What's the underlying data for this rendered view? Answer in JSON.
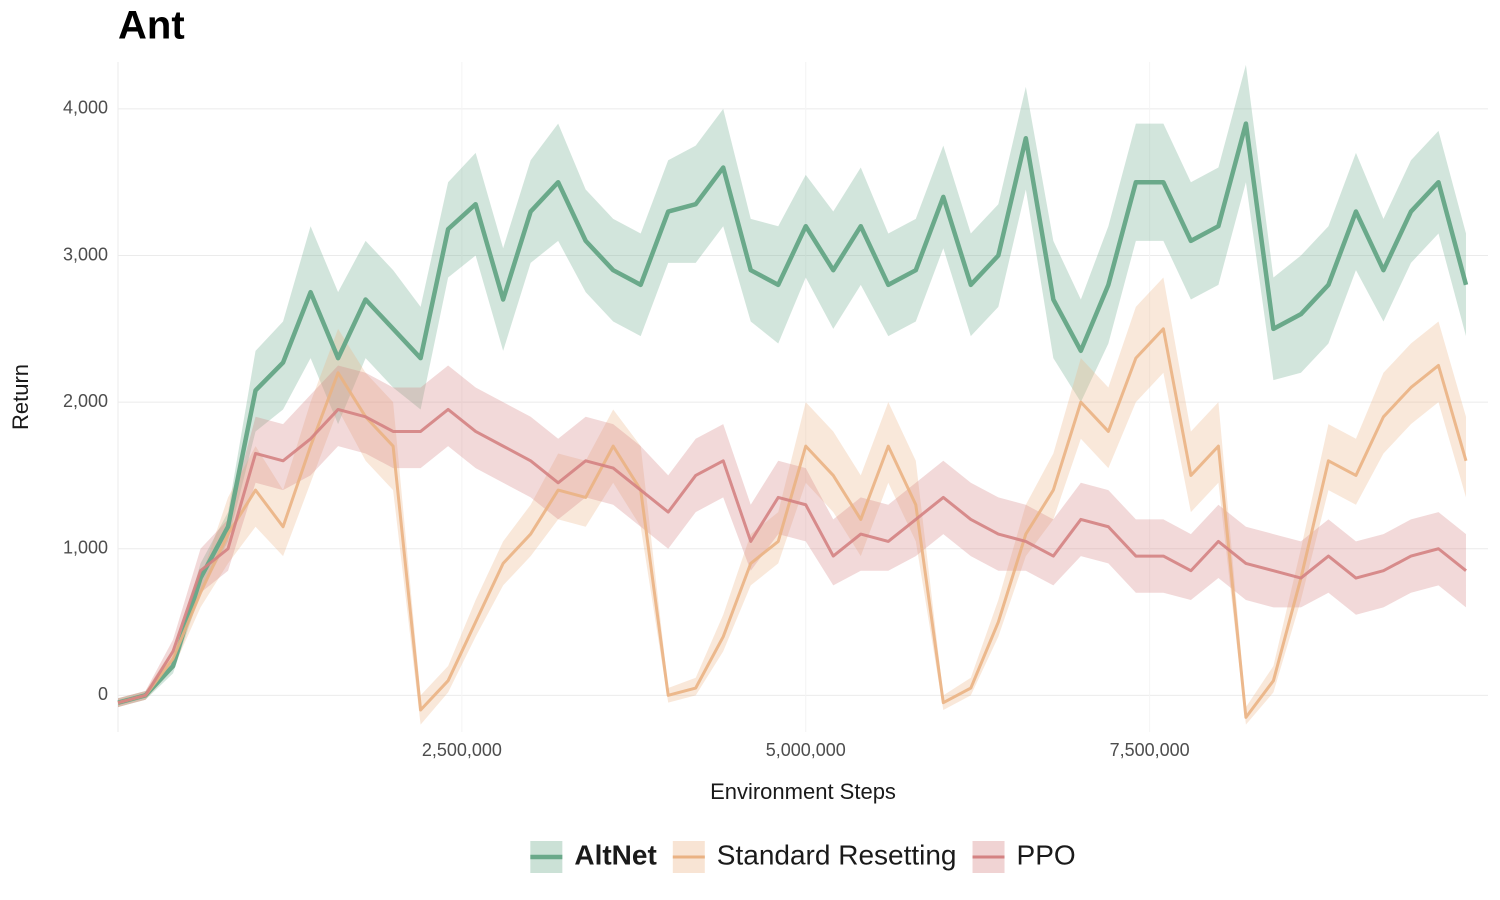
{
  "chart_data": {
    "type": "line",
    "title": "Ant",
    "xlabel": "Environment Steps",
    "ylabel": "Return",
    "x": [
      0,
      200000,
      400000,
      600000,
      800000,
      1000000,
      1200000,
      1400000,
      1600000,
      1800000,
      2000000,
      2200000,
      2400000,
      2600000,
      2800000,
      3000000,
      3200000,
      3400000,
      3600000,
      3800000,
      4000000,
      4200000,
      4400000,
      4600000,
      4800000,
      5000000,
      5200000,
      5400000,
      5600000,
      5800000,
      6000000,
      6200000,
      6400000,
      6600000,
      6800000,
      7000000,
      7200000,
      7400000,
      7600000,
      7800000,
      8000000,
      8200000,
      8400000,
      8600000,
      8800000,
      9000000,
      9200000,
      9400000,
      9600000,
      9800000
    ],
    "xlim": [
      0,
      9960000
    ],
    "ylim": [
      -250,
      4320
    ],
    "xticks": [
      {
        "value": 2500000,
        "label": "2,500,000"
      },
      {
        "value": 5000000,
        "label": "5,000,000"
      },
      {
        "value": 7500000,
        "label": "7,500,000"
      }
    ],
    "yticks": [
      0,
      {
        "value": 1000,
        "label": "1,000"
      },
      {
        "value": 2000,
        "label": "2,000"
      },
      {
        "value": 3000,
        "label": "3,000"
      },
      {
        "value": 4000,
        "label": "4,000"
      }
    ],
    "grid": true,
    "legend": "bottom",
    "series": [
      {
        "name": "AltNet",
        "color": "#6aa98a",
        "values": [
          -50,
          0,
          200,
          800,
          1150,
          2080,
          2270,
          2750,
          2300,
          2700,
          2500,
          2300,
          3180,
          3350,
          2700,
          3300,
          3500,
          3100,
          2900,
          2800,
          3300,
          3350,
          3600,
          2900,
          2800,
          3200,
          2900,
          3200,
          2800,
          2900,
          3400,
          2800,
          3000,
          3800,
          2700,
          2350,
          2800,
          3500,
          3500,
          3100,
          3200,
          3900,
          2500,
          2600,
          2800,
          3300,
          2900,
          3300,
          3500,
          2800
        ],
        "lower": [
          -80,
          -30,
          150,
          700,
          1050,
          1800,
          1950,
          2300,
          1850,
          2300,
          2100,
          1950,
          2850,
          3000,
          2350,
          2950,
          3100,
          2750,
          2550,
          2450,
          2950,
          2950,
          3200,
          2550,
          2400,
          2850,
          2500,
          2800,
          2450,
          2550,
          3050,
          2450,
          2650,
          3450,
          2300,
          2000,
          2400,
          3100,
          3100,
          2700,
          2800,
          3500,
          2150,
          2200,
          2400,
          2900,
          2550,
          2950,
          3150,
          2450
        ],
        "upper": [
          -20,
          30,
          250,
          900,
          1250,
          2350,
          2550,
          3200,
          2750,
          3100,
          2900,
          2650,
          3500,
          3700,
          3050,
          3650,
          3900,
          3450,
          3250,
          3150,
          3650,
          3750,
          4000,
          3250,
          3200,
          3550,
          3300,
          3600,
          3150,
          3250,
          3750,
          3150,
          3350,
          4150,
          3100,
          2700,
          3200,
          3900,
          3900,
          3500,
          3600,
          4300,
          2850,
          3000,
          3200,
          3700,
          3250,
          3650,
          3850,
          3150
        ]
      },
      {
        "name": "Standard Resetting",
        "color": "#eab283",
        "values": [
          -50,
          0,
          250,
          700,
          1100,
          1400,
          1150,
          1700,
          2200,
          1900,
          1700,
          -100,
          100,
          500,
          900,
          1100,
          1400,
          1350,
          1700,
          1400,
          0,
          50,
          400,
          900,
          1050,
          1700,
          1500,
          1200,
          1700,
          1300,
          -50,
          50,
          500,
          1100,
          1400,
          2000,
          1800,
          2300,
          2500,
          1500,
          1700,
          -150,
          100,
          800,
          1600,
          1500,
          1900,
          2100,
          2250,
          1600
        ],
        "lower": [
          -80,
          -30,
          180,
          600,
          900,
          1150,
          950,
          1450,
          1950,
          1600,
          1400,
          -200,
          20,
          400,
          750,
          950,
          1200,
          1150,
          1450,
          1150,
          -50,
          0,
          300,
          750,
          900,
          1450,
          1250,
          950,
          1450,
          1050,
          -100,
          0,
          400,
          950,
          1200,
          1750,
          1550,
          2000,
          2200,
          1250,
          1450,
          -200,
          20,
          650,
          1400,
          1300,
          1650,
          1850,
          2000,
          1350
        ],
        "upper": [
          -20,
          30,
          320,
          800,
          1350,
          1700,
          1400,
          2000,
          2500,
          2200,
          2000,
          0,
          200,
          650,
          1050,
          1300,
          1650,
          1600,
          1950,
          1700,
          50,
          120,
          550,
          1100,
          1250,
          2000,
          1800,
          1500,
          2000,
          1600,
          0,
          120,
          650,
          1300,
          1650,
          2300,
          2100,
          2650,
          2850,
          1800,
          2000,
          -80,
          200,
          1000,
          1850,
          1750,
          2200,
          2400,
          2550,
          1900
        ]
      },
      {
        "name": "PPO",
        "color": "#d48282",
        "values": [
          -50,
          0,
          300,
          850,
          1000,
          1650,
          1600,
          1750,
          1950,
          1900,
          1800,
          1800,
          1950,
          1800,
          1700,
          1600,
          1450,
          1600,
          1550,
          1400,
          1250,
          1500,
          1600,
          1050,
          1350,
          1300,
          950,
          1100,
          1050,
          1200,
          1350,
          1200,
          1100,
          1050,
          950,
          1200,
          1150,
          950,
          950,
          850,
          1050,
          900,
          850,
          800,
          950,
          800,
          850,
          950,
          1000,
          850
        ],
        "lower": [
          -80,
          -30,
          220,
          700,
          850,
          1450,
          1400,
          1500,
          1700,
          1650,
          1550,
          1550,
          1700,
          1550,
          1450,
          1350,
          1200,
          1350,
          1300,
          1150,
          1000,
          1250,
          1350,
          850,
          1100,
          1050,
          750,
          850,
          850,
          950,
          1100,
          950,
          850,
          850,
          750,
          950,
          900,
          700,
          700,
          650,
          800,
          650,
          600,
          600,
          700,
          550,
          600,
          700,
          750,
          600
        ],
        "upper": [
          -20,
          30,
          380,
          1000,
          1200,
          1900,
          1850,
          2050,
          2250,
          2200,
          2100,
          2100,
          2250,
          2100,
          2000,
          1900,
          1750,
          1900,
          1850,
          1700,
          1500,
          1750,
          1850,
          1300,
          1600,
          1550,
          1200,
          1350,
          1300,
          1450,
          1600,
          1450,
          1350,
          1300,
          1200,
          1450,
          1400,
          1200,
          1200,
          1100,
          1300,
          1150,
          1100,
          1050,
          1200,
          1050,
          1100,
          1200,
          1250,
          1100
        ]
      }
    ]
  }
}
